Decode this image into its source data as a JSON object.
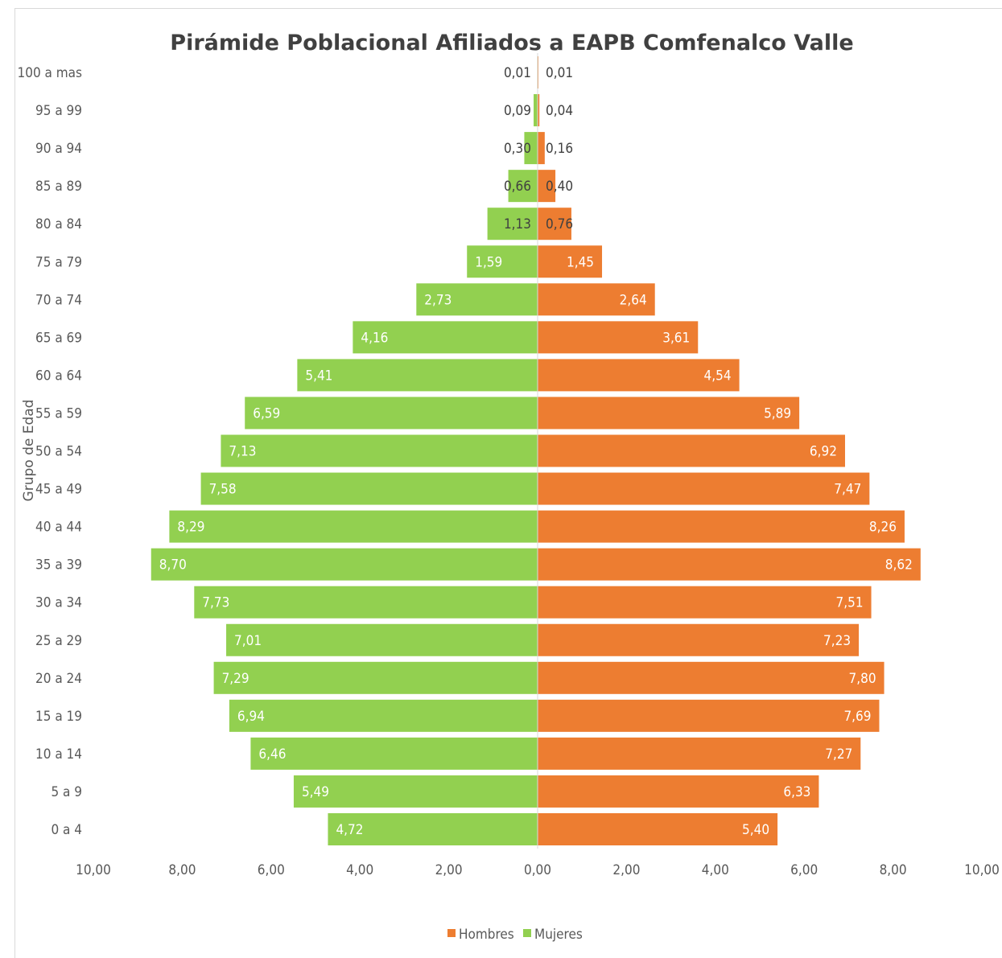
{
  "chart_data": {
    "type": "bar",
    "orientation": "horizontal-population-pyramid",
    "title": "Pirámide Poblacional Afiliados a EAPB Comfenalco Valle",
    "ylabel": "Grupo de Edad",
    "xlabel": "",
    "xlim": [
      -10,
      10
    ],
    "x_ticks": [
      "10,00",
      "8,00",
      "6,00",
      "4,00",
      "2,00",
      "0,00",
      "2,00",
      "4,00",
      "6,00",
      "8,00",
      "10,00"
    ],
    "legend_position": "bottom",
    "categories": [
      "100 a mas",
      "95 a 99",
      "90 a 94",
      "85 a 89",
      "80 a 84",
      "75 a 79",
      "70 a 74",
      "65 a 69",
      "60 a 64",
      "55 a 59",
      "50 a 54",
      "45 a 49",
      "40 a 44",
      "35 a 39",
      "30 a 34",
      "25 a 29",
      "20 a 24",
      "15 a 19",
      "10 a 14",
      "5 a 9",
      "0 a 4"
    ],
    "series": [
      {
        "name": "Hombres",
        "side": "right",
        "color": "#ed7d31",
        "values": [
          0.01,
          0.04,
          0.16,
          0.4,
          0.76,
          1.45,
          2.64,
          3.61,
          4.54,
          5.89,
          6.92,
          7.47,
          8.26,
          8.62,
          7.51,
          7.23,
          7.8,
          7.69,
          7.27,
          6.33,
          5.4
        ],
        "labels": [
          "0,01",
          "0,04",
          "0,16",
          "0,40",
          "0,76",
          "1,45",
          "2,64",
          "3,61",
          "4,54",
          "5,89",
          "6,92",
          "7,47",
          "8,26",
          "8,62",
          "7,51",
          "7,23",
          "7,80",
          "7,69",
          "7,27",
          "6,33",
          "5,40"
        ]
      },
      {
        "name": "Mujeres",
        "side": "left",
        "color": "#92d050",
        "values": [
          0.01,
          0.09,
          0.3,
          0.66,
          1.13,
          1.59,
          2.73,
          4.16,
          5.41,
          6.59,
          7.13,
          7.58,
          8.29,
          8.7,
          7.73,
          7.01,
          7.29,
          6.94,
          6.46,
          5.49,
          4.72
        ],
        "labels": [
          "0,01",
          "0,09",
          "0,30",
          "0,66",
          "1,13",
          "1,59",
          "2,73",
          "4,16",
          "5,41",
          "6,59",
          "7,13",
          "7,58",
          "8,29",
          "8,70",
          "7,73",
          "7,01",
          "7,29",
          "6,94",
          "6,46",
          "5,49",
          "4,72"
        ]
      }
    ]
  }
}
